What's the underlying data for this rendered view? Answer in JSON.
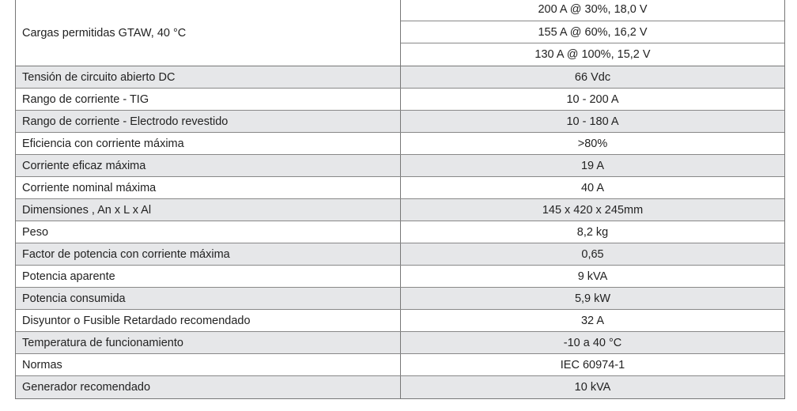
{
  "gtaw": {
    "label": "Cargas permitidas GTAW, 40 °C",
    "values": [
      "200 A @ 30%, 18,0 V",
      "155 A @ 60%, 16,2 V",
      "130 A @ 100%, 15,2 V"
    ]
  },
  "rows": [
    {
      "label": "Tensión de circuito abierto DC",
      "value": "66 Vdc"
    },
    {
      "label": "Rango de corriente - TIG",
      "value": "10 - 200 A"
    },
    {
      "label": "Rango de corriente - Electrodo revestido",
      "value": "10 - 180 A"
    },
    {
      "label": "Eficiencia con corriente máxima",
      "value": ">80%"
    },
    {
      "label": "Corriente eficaz máxima",
      "value": "19 A"
    },
    {
      "label": "Corriente nominal máxima",
      "value": "40 A"
    },
    {
      "label": "Dimensiones , An x L x Al",
      "value": "145 x 420 x 245mm"
    },
    {
      "label": "Peso",
      "value": "8,2 kg"
    },
    {
      "label": "Factor de potencia con corriente máxima",
      "value": "0,65"
    },
    {
      "label": "Potencia aparente",
      "value": "9 kVA"
    },
    {
      "label": "Potencia consumida",
      "value": "5,9 kW"
    },
    {
      "label": "Disyuntor o Fusible Retardado recomendado",
      "value": "32 A"
    },
    {
      "label": "Temperatura de funcionamiento",
      "value": "-10 a 40 °C"
    },
    {
      "label": "Normas",
      "value": "IEC 60974-1"
    },
    {
      "label": "Generador recomendado",
      "value": "10 kVA"
    }
  ]
}
